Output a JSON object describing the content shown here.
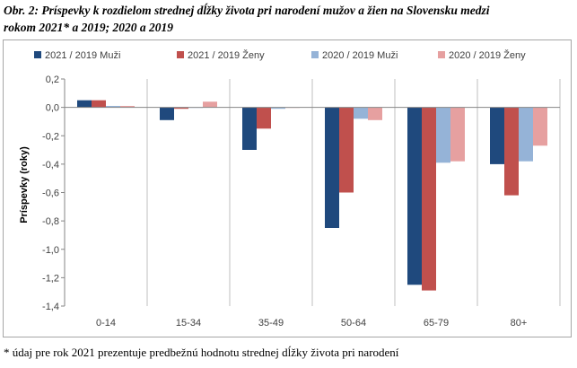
{
  "header": {
    "title_line1": "Obr. 2: Príspevky k rozdielom strednej dĺžky života pri narodení mužov a žien na Slovensku medzi",
    "title_line2": "rokom 2021* a 2019; 2020 a 2019"
  },
  "footnote": "* údaj pre rok 2021 prezentuje predbežnú hodnotu strednej dĺžky života pri narodení",
  "chart_data": {
    "type": "bar",
    "categories": [
      "0-14",
      "15-34",
      "35-49",
      "50-64",
      "65-79",
      "80+"
    ],
    "series": [
      {
        "name": "2021 / 2019 Muži",
        "color": "#1f497d",
        "values": [
          0.05,
          -0.09,
          -0.3,
          -0.85,
          -1.25,
          -0.4
        ]
      },
      {
        "name": "2021 / 2019 Ženy",
        "color": "#c0504d",
        "values": [
          0.05,
          -0.01,
          -0.15,
          -0.6,
          -1.29,
          -0.62
        ]
      },
      {
        "name": "2020 / 2019 Muži",
        "color": "#95b3d7",
        "values": [
          0.01,
          0.0,
          -0.01,
          -0.08,
          -0.39,
          -0.38
        ]
      },
      {
        "name": "2020 / 2019 Ženy",
        "color": "#e6a0a0",
        "values": [
          0.01,
          0.04,
          0.0,
          -0.09,
          -0.38,
          -0.27
        ]
      }
    ],
    "ylabel": "Príspevky (roky)",
    "xlabel": "",
    "ylim": [
      -1.4,
      0.2
    ],
    "yticks": [
      "0,2",
      "0,0",
      "-0,2",
      "-0,4",
      "-0,6",
      "-0,8",
      "-1,0",
      "-1,2",
      "-1,4"
    ],
    "legend_position": "top",
    "grid": "vertical separators between categories"
  }
}
